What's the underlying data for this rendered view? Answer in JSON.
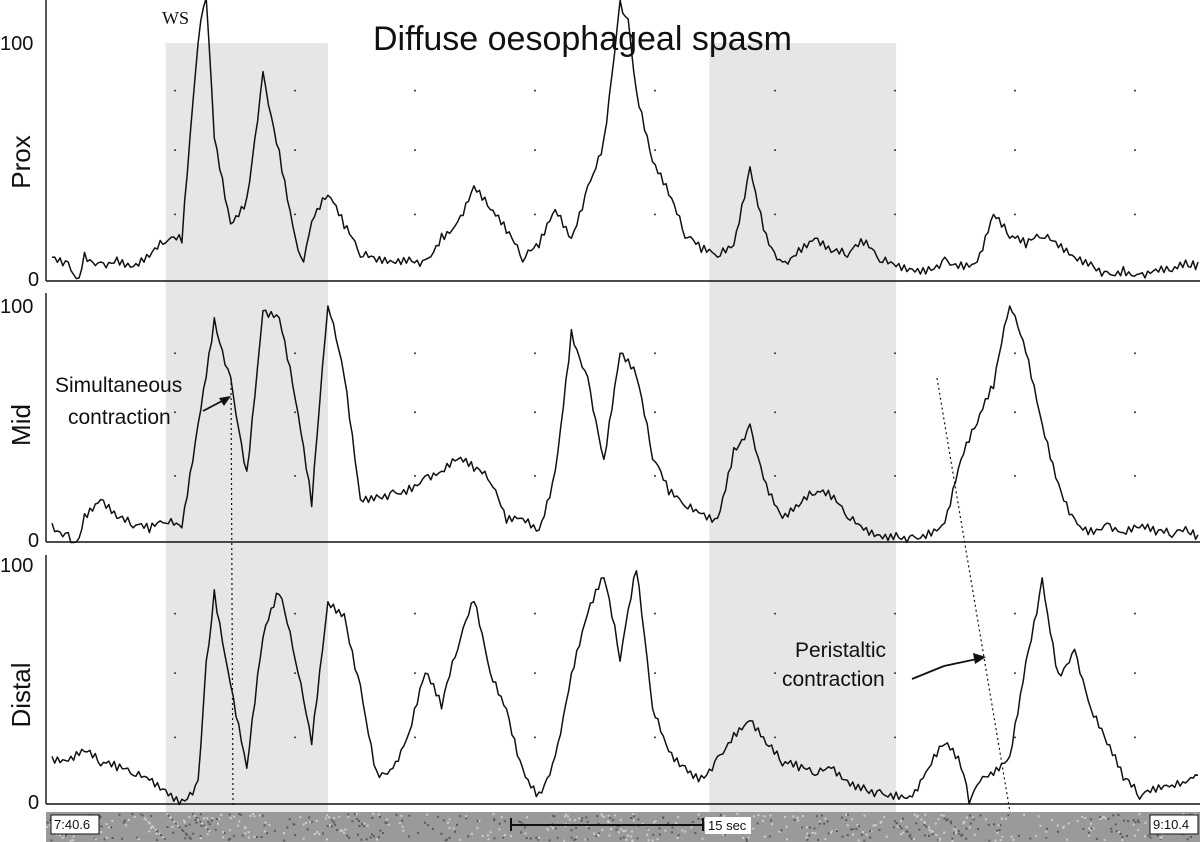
{
  "chart_data": {
    "type": "line",
    "title": "Diffuse oesophageal spasm",
    "marker": "WS",
    "time_start": "7:40.6",
    "time_end": "9:10.4",
    "scale_bar_label": "15 sec",
    "shaded_swallows": [
      [
        7.0,
        17.0
      ],
      [
        40.5,
        52.0
      ]
    ],
    "panels": [
      {
        "name": "Prox",
        "ylim": [
          0,
          100
        ],
        "yticks": [
          "0",
          "100"
        ],
        "points": [
          [
            0,
            10
          ],
          [
            1,
            8
          ],
          [
            1.5,
            1
          ],
          [
            2,
            12
          ],
          [
            3,
            8
          ],
          [
            4,
            10
          ],
          [
            5,
            6
          ],
          [
            6,
            10
          ],
          [
            7,
            16
          ],
          [
            8,
            16
          ],
          [
            9,
            100
          ],
          [
            9.5,
            120
          ],
          [
            10,
            60
          ],
          [
            11,
            24
          ],
          [
            12,
            35
          ],
          [
            13,
            88
          ],
          [
            14,
            55
          ],
          [
            15,
            18
          ],
          [
            15.5,
            8
          ],
          [
            16,
            25
          ],
          [
            17,
            36
          ],
          [
            18,
            22
          ],
          [
            19,
            10
          ],
          [
            20,
            8
          ],
          [
            21,
            8
          ],
          [
            22,
            10
          ],
          [
            23,
            9
          ],
          [
            24,
            20
          ],
          [
            25,
            25
          ],
          [
            26,
            40
          ],
          [
            27,
            30
          ],
          [
            28,
            20
          ],
          [
            29,
            8
          ],
          [
            30,
            14
          ],
          [
            31,
            30
          ],
          [
            32,
            18
          ],
          [
            33,
            40
          ],
          [
            34,
            60
          ],
          [
            35,
            118
          ],
          [
            35.5,
            110
          ],
          [
            36,
            80
          ],
          [
            37,
            50
          ],
          [
            38,
            36
          ],
          [
            39,
            18
          ],
          [
            40,
            12
          ],
          [
            41,
            10
          ],
          [
            42,
            15
          ],
          [
            43,
            48
          ],
          [
            44,
            20
          ],
          [
            45,
            8
          ],
          [
            46,
            14
          ],
          [
            47,
            18
          ],
          [
            48,
            12
          ],
          [
            49,
            10
          ],
          [
            50,
            15
          ],
          [
            51,
            8
          ],
          [
            52,
            6
          ],
          [
            53,
            5
          ],
          [
            54,
            6
          ],
          [
            55,
            10
          ],
          [
            56,
            8
          ],
          [
            57,
            8
          ],
          [
            58,
            28
          ],
          [
            59,
            18
          ],
          [
            60,
            14
          ],
          [
            61,
            18
          ],
          [
            62,
            14
          ],
          [
            63,
            10
          ],
          [
            64,
            8
          ],
          [
            65,
            4
          ],
          [
            66,
            6
          ],
          [
            67,
            3
          ],
          [
            68,
            5
          ],
          [
            69,
            4
          ],
          [
            70,
            6
          ],
          [
            70.6,
            8
          ]
        ]
      },
      {
        "name": "Mid",
        "ylim": [
          0,
          100
        ],
        "yticks": [
          "0",
          "100"
        ],
        "points": [
          [
            0,
            8
          ],
          [
            1,
            4
          ],
          [
            1.5,
            0
          ],
          [
            2,
            12
          ],
          [
            3,
            18
          ],
          [
            4,
            10
          ],
          [
            5,
            6
          ],
          [
            6,
            4
          ],
          [
            7,
            8
          ],
          [
            8,
            6
          ],
          [
            9,
            50
          ],
          [
            10,
            95
          ],
          [
            11,
            70
          ],
          [
            12,
            30
          ],
          [
            13,
            98
          ],
          [
            14,
            95
          ],
          [
            15,
            60
          ],
          [
            16,
            15
          ],
          [
            17,
            100
          ],
          [
            18,
            70
          ],
          [
            19,
            18
          ],
          [
            20,
            20
          ],
          [
            21,
            22
          ],
          [
            22,
            24
          ],
          [
            23,
            28
          ],
          [
            24,
            30
          ],
          [
            25,
            35
          ],
          [
            26,
            30
          ],
          [
            27,
            25
          ],
          [
            28,
            8
          ],
          [
            29,
            10
          ],
          [
            30,
            5
          ],
          [
            31,
            30
          ],
          [
            32,
            90
          ],
          [
            33,
            70
          ],
          [
            34,
            35
          ],
          [
            35,
            80
          ],
          [
            36,
            70
          ],
          [
            37,
            35
          ],
          [
            38,
            20
          ],
          [
            39,
            15
          ],
          [
            40,
            12
          ],
          [
            41,
            10
          ],
          [
            42,
            40
          ],
          [
            43,
            50
          ],
          [
            44,
            25
          ],
          [
            45,
            10
          ],
          [
            46,
            15
          ],
          [
            47,
            20
          ],
          [
            48,
            18
          ],
          [
            49,
            10
          ],
          [
            50,
            5
          ],
          [
            51,
            3
          ],
          [
            52,
            4
          ],
          [
            53,
            3
          ],
          [
            54,
            5
          ],
          [
            55,
            8
          ],
          [
            56,
            35
          ],
          [
            57,
            50
          ],
          [
            58,
            65
          ],
          [
            59,
            100
          ],
          [
            60,
            80
          ],
          [
            61,
            50
          ],
          [
            62,
            25
          ],
          [
            63,
            10
          ],
          [
            64,
            6
          ],
          [
            65,
            8
          ],
          [
            66,
            4
          ],
          [
            67,
            6
          ],
          [
            68,
            3
          ],
          [
            69,
            2
          ],
          [
            70,
            4
          ],
          [
            70.6,
            3
          ]
        ]
      },
      {
        "name": "Distal",
        "ylim": [
          0,
          100
        ],
        "yticks": [
          "0",
          "100"
        ],
        "points": [
          [
            0,
            20
          ],
          [
            1,
            18
          ],
          [
            2,
            22
          ],
          [
            3,
            16
          ],
          [
            4,
            14
          ],
          [
            5,
            12
          ],
          [
            6,
            10
          ],
          [
            7,
            6
          ],
          [
            8,
            2
          ],
          [
            9,
            10
          ],
          [
            9.5,
            60
          ],
          [
            10,
            90
          ],
          [
            11,
            50
          ],
          [
            12,
            15
          ],
          [
            13,
            70
          ],
          [
            14,
            88
          ],
          [
            15,
            60
          ],
          [
            16,
            25
          ],
          [
            17,
            85
          ],
          [
            18,
            80
          ],
          [
            19,
            50
          ],
          [
            20,
            14
          ],
          [
            21,
            15
          ],
          [
            22,
            30
          ],
          [
            23,
            55
          ],
          [
            24,
            40
          ],
          [
            25,
            65
          ],
          [
            26,
            85
          ],
          [
            27,
            55
          ],
          [
            28,
            40
          ],
          [
            29,
            15
          ],
          [
            30,
            5
          ],
          [
            31,
            20
          ],
          [
            32,
            55
          ],
          [
            33,
            80
          ],
          [
            34,
            95
          ],
          [
            35,
            60
          ],
          [
            36,
            98
          ],
          [
            37,
            40
          ],
          [
            38,
            22
          ],
          [
            39,
            16
          ],
          [
            40,
            12
          ],
          [
            41,
            20
          ],
          [
            42,
            30
          ],
          [
            43,
            35
          ],
          [
            44,
            25
          ],
          [
            45,
            16
          ],
          [
            46,
            14
          ],
          [
            47,
            12
          ],
          [
            48,
            15
          ],
          [
            49,
            10
          ],
          [
            50,
            8
          ],
          [
            51,
            6
          ],
          [
            52,
            5
          ],
          [
            53,
            3
          ],
          [
            54,
            15
          ],
          [
            55,
            25
          ],
          [
            56,
            15
          ],
          [
            56.5,
            0
          ],
          [
            57,
            8
          ],
          [
            58,
            12
          ],
          [
            59,
            20
          ],
          [
            60,
            60
          ],
          [
            61,
            95
          ],
          [
            62,
            55
          ],
          [
            63,
            65
          ],
          [
            64,
            40
          ],
          [
            65,
            25
          ],
          [
            66,
            10
          ],
          [
            67,
            2
          ],
          [
            68,
            5
          ],
          [
            69,
            8
          ],
          [
            70,
            10
          ],
          [
            70.6,
            12
          ]
        ]
      }
    ],
    "annotations": [
      {
        "lines": [
          "Simultaneous",
          "contraction"
        ]
      },
      {
        "lines": [
          "Peristaltic",
          "contraction"
        ]
      }
    ]
  }
}
